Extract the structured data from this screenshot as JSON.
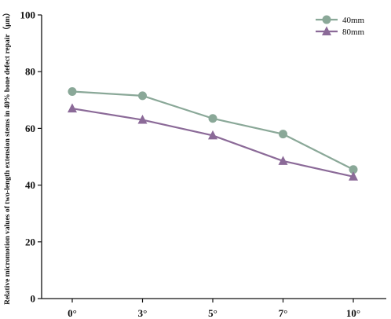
{
  "chart_data": {
    "type": "line",
    "categories": [
      "0°",
      "3°",
      "5°",
      "7°",
      "10°"
    ],
    "series": [
      {
        "name": "40mm",
        "values": [
          73,
          71.5,
          63.5,
          58,
          45.5
        ],
        "color": "#8aa898",
        "marker": "circle"
      },
      {
        "name": "80mm",
        "values": [
          67,
          63,
          57.5,
          48.5,
          43
        ],
        "color": "#8b6a98",
        "marker": "triangle"
      }
    ],
    "title": "",
    "xlabel": "",
    "ylabel": "Relative micromotion values of two-length extension stems in 40% bone defect repair（μm）",
    "ylim": [
      0,
      100
    ],
    "yticks": [
      0,
      20,
      40,
      60,
      80,
      100
    ],
    "grid": false,
    "legend_position": "top-right"
  }
}
